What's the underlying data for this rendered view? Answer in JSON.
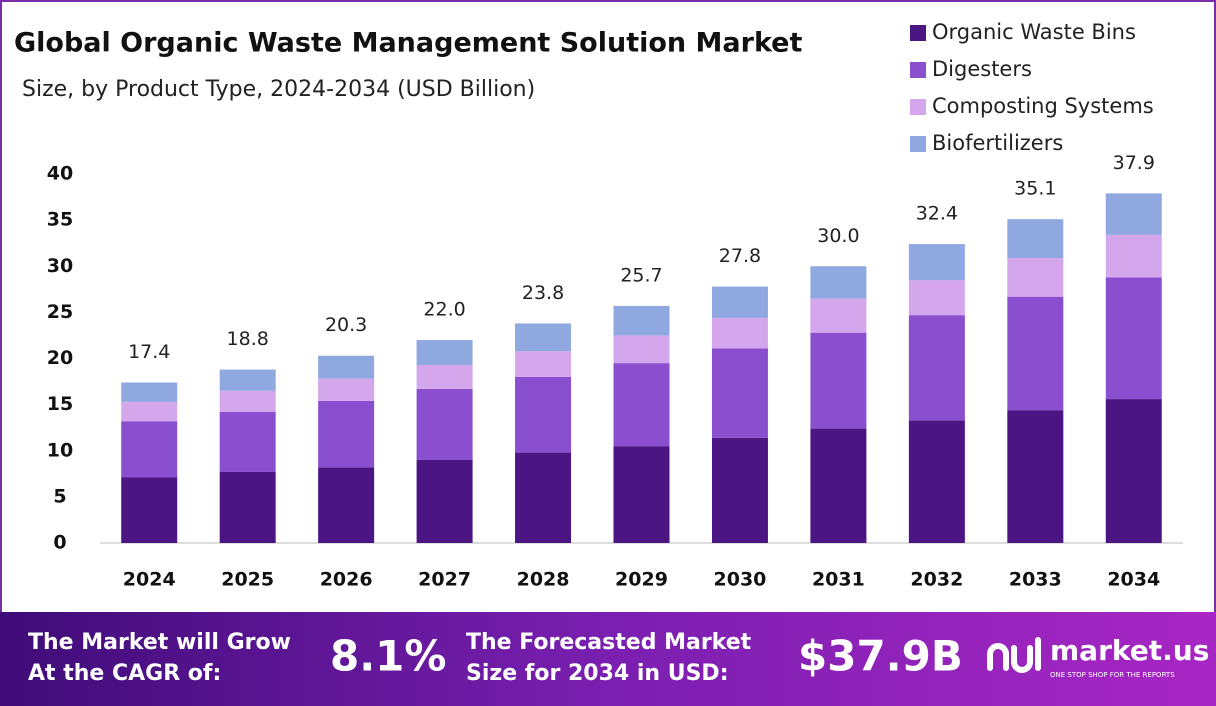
{
  "chart_data": {
    "type": "stacked-bar",
    "title": "Global Organic Waste Management  Solution Market",
    "subtitle": "Size, by Product Type, 2024-2034 (USD Billion)",
    "categories": [
      "2024",
      "2025",
      "2026",
      "2027",
      "2028",
      "2029",
      "2030",
      "2031",
      "2032",
      "2033",
      "2034"
    ],
    "series": [
      {
        "name": "Organic Waste Bins",
        "color": "#4b1583",
        "values": [
          7.1,
          7.7,
          8.2,
          9.0,
          9.8,
          10.5,
          11.4,
          12.4,
          13.3,
          14.4,
          15.6
        ]
      },
      {
        "name": "Digesters",
        "color": "#8a4fcf",
        "values": [
          6.1,
          6.5,
          7.2,
          7.7,
          8.2,
          9.0,
          9.7,
          10.4,
          11.4,
          12.3,
          13.2
        ]
      },
      {
        "name": "Composting Systems",
        "color": "#d4a6ec",
        "values": [
          2.1,
          2.3,
          2.4,
          2.6,
          2.8,
          3.0,
          3.3,
          3.7,
          3.8,
          4.2,
          4.6
        ]
      },
      {
        "name": "Biofertilizers",
        "color": "#8fa8e0",
        "values": [
          2.1,
          2.3,
          2.5,
          2.7,
          3.0,
          3.2,
          3.4,
          3.5,
          3.9,
          4.2,
          4.5
        ]
      }
    ],
    "totals": {
      "values": [
        17.4,
        18.8,
        20.3,
        22.0,
        23.8,
        25.7,
        27.8,
        30.0,
        32.4,
        35.1,
        37.9
      ],
      "value_labels": [
        "17.4",
        "18.8",
        "20.3",
        "22.0",
        "23.8",
        "25.7",
        "27.8",
        "30.0",
        "32.4",
        "35.1",
        "37.9"
      ]
    },
    "ylim": [
      0,
      40
    ],
    "yticks": [
      0,
      5,
      10,
      15,
      20,
      25,
      30,
      35,
      40
    ],
    "grid": false
  },
  "footer": {
    "cagr_text": [
      "The Market will Grow",
      "At the CAGR of:"
    ],
    "cagr": "8.1%",
    "forecast_text": [
      "The Forecasted Market",
      "Size for 2034 in USD:"
    ],
    "forecast": "$37.9B",
    "logo": "market.us",
    "tagline": "ONE STOP SHOP FOR THE REPORTS"
  }
}
